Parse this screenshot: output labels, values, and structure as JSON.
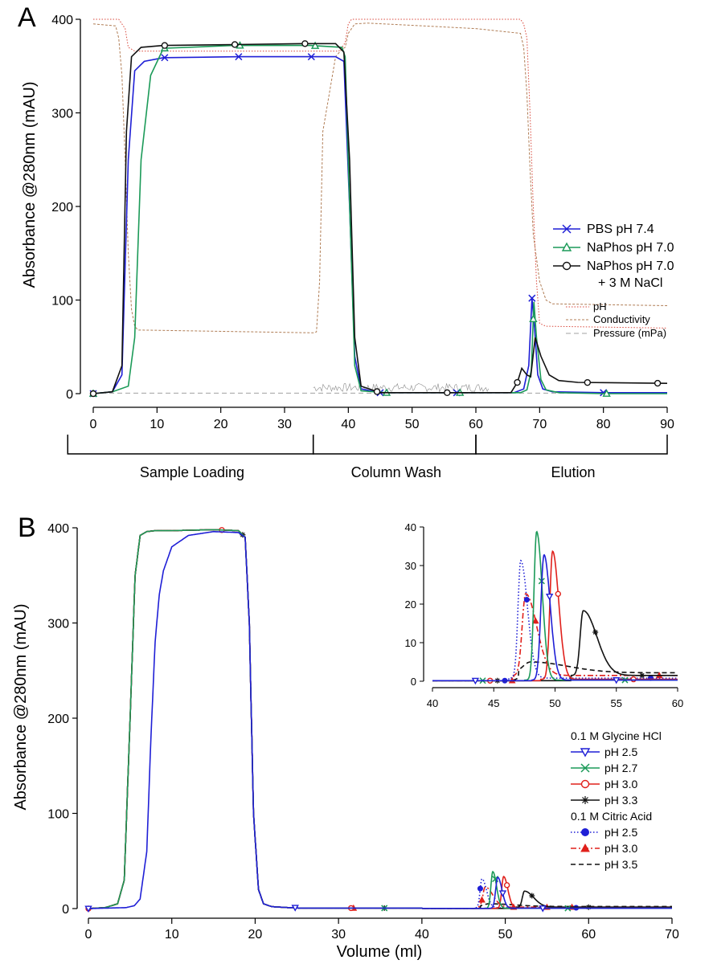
{
  "chart_data": [
    {
      "panel_label": "A",
      "type": "line",
      "ylabel": "Absorbance @280nm (mAU)",
      "xlim": [
        0,
        90
      ],
      "ylim": [
        0,
        400
      ],
      "x_ticks": [
        0,
        10,
        20,
        30,
        40,
        50,
        60,
        70,
        80,
        90
      ],
      "y_ticks": [
        0,
        100,
        200,
        300,
        400
      ],
      "phases": [
        {
          "label": "Sample Loading",
          "start": -4,
          "end": 34.5
        },
        {
          "label": "Column Wash",
          "start": 34.5,
          "end": 60
        },
        {
          "label": "Elution",
          "start": 60,
          "end": 90
        }
      ],
      "legend_items": [
        "PBS pH 7.4",
        "NaPhos pH 7.0",
        "NaPhos pH 7.0",
        "+ 3 M NaCl"
      ],
      "aux_legend_items": [
        "pH",
        "Conductivity",
        "Pressure (mPa)"
      ],
      "series": [
        {
          "name": "PBS pH 7.4",
          "color": "#1f1fd6",
          "marker": "x",
          "x": [
            0,
            3,
            4.5,
            5.5,
            6.5,
            8,
            11,
            23,
            34,
            38,
            39.3,
            40.2,
            41,
            42,
            45,
            60,
            66,
            67.5,
            68.3,
            68.8,
            69.2,
            69.7,
            70.5,
            72,
            80,
            90
          ],
          "y": [
            0,
            2,
            20,
            250,
            345,
            355,
            359,
            360,
            360,
            360,
            355,
            200,
            40,
            5,
            1,
            1,
            1,
            5,
            30,
            102,
            70,
            20,
            5,
            2,
            1,
            1
          ],
          "markers_x": [
            0,
            11.2,
            22.8,
            34.2,
            45,
            57,
            68.8,
            80
          ]
        },
        {
          "name": "NaPhos pH 7.0",
          "color": "#1b9a58",
          "marker": "triangle",
          "x": [
            0,
            3,
            5.5,
            6.5,
            7.5,
            9,
            11,
            22,
            34,
            39,
            39.5,
            40.3,
            41,
            42,
            46,
            60,
            67,
            68,
            68.7,
            69.1,
            69.5,
            70.2,
            71,
            73,
            80,
            90
          ],
          "y": [
            0,
            2,
            8,
            60,
            250,
            340,
            369,
            372,
            372,
            370,
            360,
            180,
            30,
            3,
            1,
            1,
            1,
            4,
            25,
            98,
            60,
            15,
            4,
            1,
            0,
            0
          ],
          "markers_x": [
            0,
            11.2,
            23,
            34.8,
            46,
            57.5,
            69,
            80.5
          ]
        },
        {
          "name": "NaPhos pH 7.0 + 3 M NaCl",
          "color": "#111111",
          "marker": "circle",
          "x": [
            0,
            3,
            4.5,
            5.2,
            6,
            7.5,
            11,
            22,
            33,
            38,
            39.3,
            40.2,
            41,
            42,
            45,
            60,
            65.5,
            66.5,
            67.2,
            68,
            68.6,
            69.3,
            70.2,
            71.5,
            73,
            76,
            90
          ],
          "y": [
            0,
            2,
            30,
            280,
            360,
            370,
            372,
            373,
            374,
            374,
            365,
            250,
            60,
            8,
            1,
            1,
            1,
            12,
            27,
            20,
            18,
            60,
            40,
            20,
            14,
            12,
            11
          ],
          "markers_x": [
            0,
            11.2,
            22.2,
            33.2,
            44.5,
            55.5,
            66.5,
            77.5,
            88.5
          ]
        }
      ],
      "aux_series": [
        {
          "name": "pH",
          "color": "#d9473b",
          "x": [
            0,
            4,
            4.5,
            5,
            5.5,
            6.5,
            34,
            38.5,
            39,
            39.5,
            40,
            40.5,
            42,
            60,
            67,
            67.5,
            68,
            68.5,
            69,
            69.5,
            70,
            71,
            90
          ],
          "y": [
            400,
            400,
            395,
            390,
            370,
            366,
            366,
            366,
            370,
            375,
            395,
            400,
            400,
            400,
            400,
            395,
            380,
            300,
            200,
            120,
            75,
            72,
            70
          ]
        },
        {
          "name": "Conductivity",
          "color": "#b07d55",
          "x": [
            0,
            3.5,
            4,
            4.5,
            5,
            5.5,
            6,
            6.5,
            7,
            34.5,
            35,
            35.5,
            36,
            38,
            39,
            39.5,
            40,
            41,
            43,
            60,
            67,
            67.5,
            68,
            68.5,
            69,
            70,
            71,
            72,
            90
          ],
          "y": [
            395,
            393,
            380,
            340,
            250,
            150,
            90,
            72,
            68,
            65,
            66,
            120,
            280,
            360,
            368,
            370,
            385,
            395,
            396,
            390,
            385,
            370,
            320,
            240,
            170,
            120,
            100,
            96,
            94
          ]
        },
        {
          "name": "Pressure (mPa)",
          "color": "#a0a0a0",
          "flat_value": 0.5,
          "noise_range": [
            34.5,
            62
          ]
        }
      ]
    },
    {
      "panel_label": "B",
      "type": "line",
      "xlabel": "Volume (ml)",
      "ylabel": "Absorbance @280nm (mAU)",
      "xlim": [
        0,
        70
      ],
      "ylim": [
        0,
        400
      ],
      "x_ticks": [
        0,
        10,
        20,
        30,
        40,
        50,
        60,
        70
      ],
      "y_ticks": [
        0,
        100,
        200,
        300,
        400
      ],
      "legend": {
        "group1_title": "0.1 M Glycine HCl",
        "group1_items": [
          "pH 2.5",
          "pH 2.7",
          "pH 3.0",
          "pH 3.3"
        ],
        "group2_title": "0.1 M Citric Acid",
        "group2_items": [
          "pH 2.5",
          "pH 3.0",
          "pH 3.5"
        ]
      },
      "loading": {
        "x": [
          0,
          2,
          3.5,
          4.3,
          5,
          5.6,
          6.2,
          7,
          8,
          10,
          15,
          18,
          18.8,
          19.3,
          19.8,
          20.4,
          21,
          22,
          24,
          25
        ],
        "y": [
          0,
          1,
          5,
          30,
          200,
          350,
          392,
          396,
          397,
          397,
          398,
          397,
          390,
          300,
          100,
          20,
          5,
          2,
          1,
          1
        ],
        "slow_x": [
          0,
          4.5,
          5.5,
          6.2,
          7,
          7.5,
          8,
          8.5,
          9,
          10,
          12,
          15,
          18,
          18.8,
          19.3,
          19.8,
          20.4,
          21,
          22,
          24,
          25
        ],
        "slow_y": [
          0,
          1,
          3,
          10,
          60,
          180,
          280,
          330,
          355,
          380,
          392,
          396,
          395,
          390,
          300,
          100,
          20,
          5,
          2,
          1,
          1
        ]
      },
      "series": [
        {
          "group": "0.1 M Glycine HCl",
          "name": "pH 2.5",
          "color": "#1f1fd6",
          "dash": "solid",
          "marker": "triangle-down",
          "peak_x": 49.1,
          "peak_y": 32.5,
          "sigma_left": 0.25,
          "sigma_right": 0.5,
          "baseline": 0.3,
          "markers_x": [
            0,
            24.8,
            49.7,
            54.5
          ]
        },
        {
          "group": "0.1 M Glycine HCl",
          "name": "pH 2.7",
          "color": "#1b9a58",
          "dash": "solid",
          "marker": "x",
          "peak_x": 48.5,
          "peak_y": 38.5,
          "sigma_left": 0.22,
          "sigma_right": 0.45,
          "baseline": 0.3,
          "markers_x": [
            35.5,
            48.8,
            57.5
          ]
        },
        {
          "group": "0.1 M Glycine HCl",
          "name": "pH 3.0",
          "color": "#e0201b",
          "dash": "solid",
          "marker": "circle",
          "peak_x": 49.8,
          "peak_y": 33.2,
          "sigma_left": 0.22,
          "sigma_right": 0.5,
          "baseline": 0.5,
          "markers_x": [
            0,
            16,
            31.5,
            50.2
          ]
        },
        {
          "group": "0.1 M Glycine HCl",
          "name": "pH 3.3",
          "color": "#111111",
          "dash": "solid",
          "marker": "asterisk",
          "peak_x": 52.3,
          "peak_y": 16.8,
          "sigma_left": 0.25,
          "sigma_right": 1.1,
          "baseline": 1.5,
          "markers_x": [
            18.5,
            35.5,
            53.2,
            60
          ]
        },
        {
          "group": "0.1 M Citric Acid",
          "name": "pH 2.5",
          "color": "#1f1fd6",
          "dash": "dotted",
          "marker": "filled-circle",
          "peak_x": 47.2,
          "peak_y": 30.5,
          "sigma_left": 0.22,
          "sigma_right": 0.55,
          "baseline": 0.8,
          "markers_x": [
            47,
            58.5
          ]
        },
        {
          "group": "0.1 M Citric Acid",
          "name": "pH 3.0",
          "color": "#e0201b",
          "dash": "dashdot",
          "marker": "filled-triangle",
          "peak_x": 47.6,
          "peak_y": 21.2,
          "sigma_left": 0.28,
          "sigma_right": 0.9,
          "baseline": 1.5,
          "markers_x": [
            31.8,
            47.2,
            51,
            55,
            58
          ]
        },
        {
          "group": "0.1 M Citric Acid",
          "name": "pH 3.5",
          "color": "#111111",
          "dash": "dashed",
          "marker": "none",
          "peak_x": 48,
          "peak_y": 2.8,
          "sigma_left": 0.6,
          "sigma_right": 3,
          "baseline": 2.2,
          "markers_x": []
        }
      ],
      "inset": {
        "xlim": [
          40,
          60
        ],
        "ylim": [
          0,
          40
        ],
        "x_ticks": [
          40,
          45,
          50,
          55,
          60
        ],
        "y_ticks": [
          0,
          10,
          20,
          30,
          40
        ]
      }
    }
  ]
}
